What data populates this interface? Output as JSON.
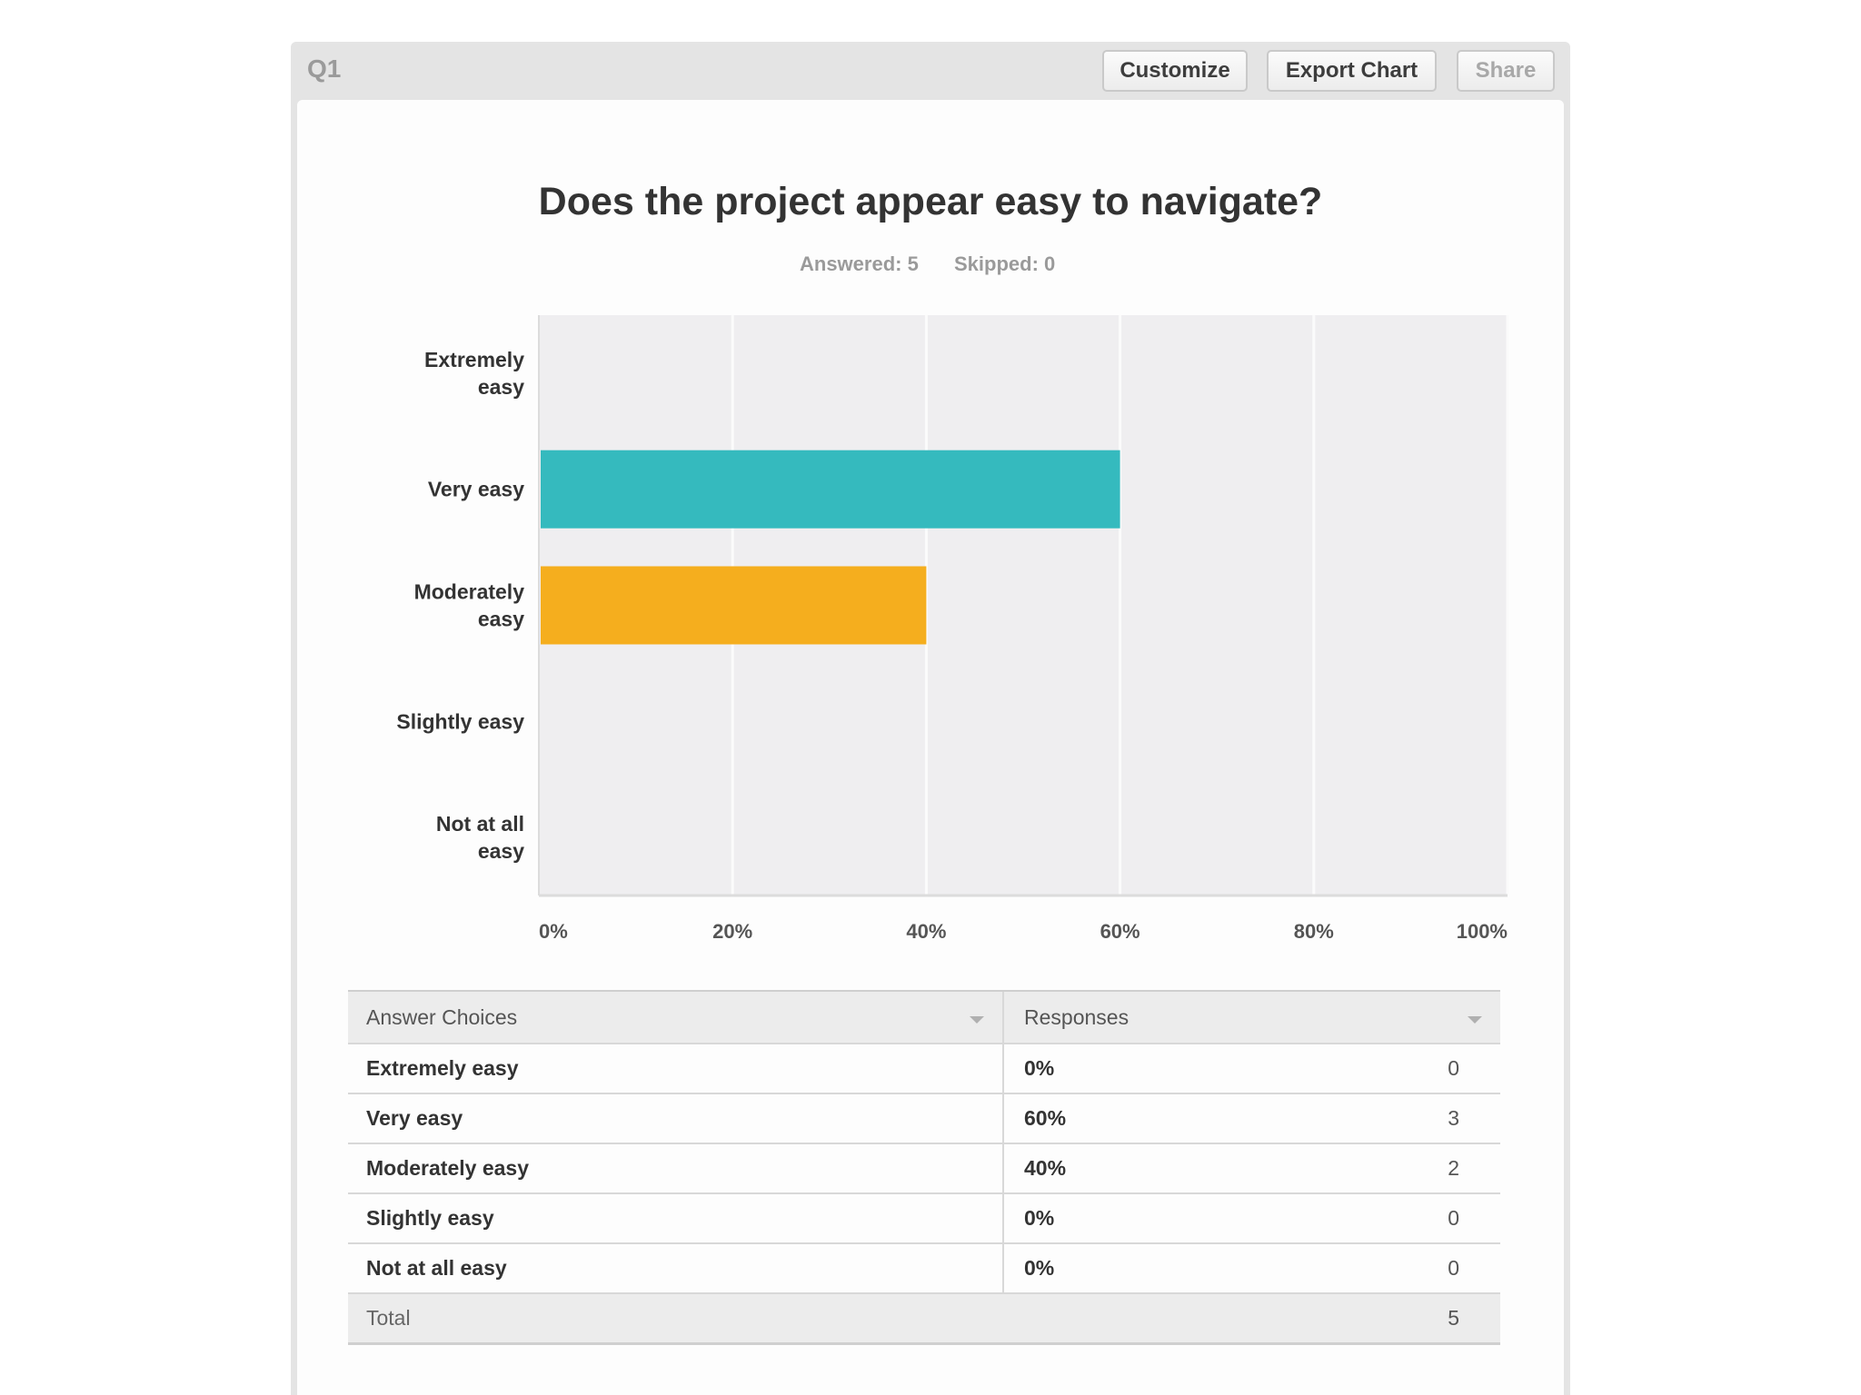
{
  "header": {
    "question_label": "Q1",
    "buttons": {
      "customize": "Customize",
      "export_chart": "Export Chart",
      "share": "Share"
    }
  },
  "question": {
    "title": "Does the project appear easy to navigate?",
    "answered": "Answered: 5",
    "skipped": "Skipped: 0"
  },
  "chart_data": {
    "type": "bar",
    "orientation": "horizontal",
    "categories": [
      [
        "Extremely",
        "easy"
      ],
      [
        "Very easy"
      ],
      [
        "Moderately",
        "easy"
      ],
      [
        "Slightly easy"
      ],
      [
        "Not at all",
        "easy"
      ]
    ],
    "values": [
      0,
      60,
      40,
      0,
      0
    ],
    "colors": [
      "#35babe",
      "#35babe",
      "#f5ae1e",
      "#35babe",
      "#35babe"
    ],
    "xlim": [
      0,
      100
    ],
    "xticks": [
      "0%",
      "20%",
      "40%",
      "60%",
      "80%",
      "100%"
    ],
    "grid": true,
    "plot_background": "#efeef0"
  },
  "table": {
    "headers": {
      "choices": "Answer Choices",
      "responses": "Responses"
    },
    "rows": [
      {
        "choice": "Extremely easy",
        "percent": "0%",
        "count": "0"
      },
      {
        "choice": "Very easy",
        "percent": "60%",
        "count": "3"
      },
      {
        "choice": "Moderately easy",
        "percent": "40%",
        "count": "2"
      },
      {
        "choice": "Slightly easy",
        "percent": "0%",
        "count": "0"
      },
      {
        "choice": "Not at all easy",
        "percent": "0%",
        "count": "0"
      }
    ],
    "total_label": "Total",
    "total_count": "5"
  }
}
